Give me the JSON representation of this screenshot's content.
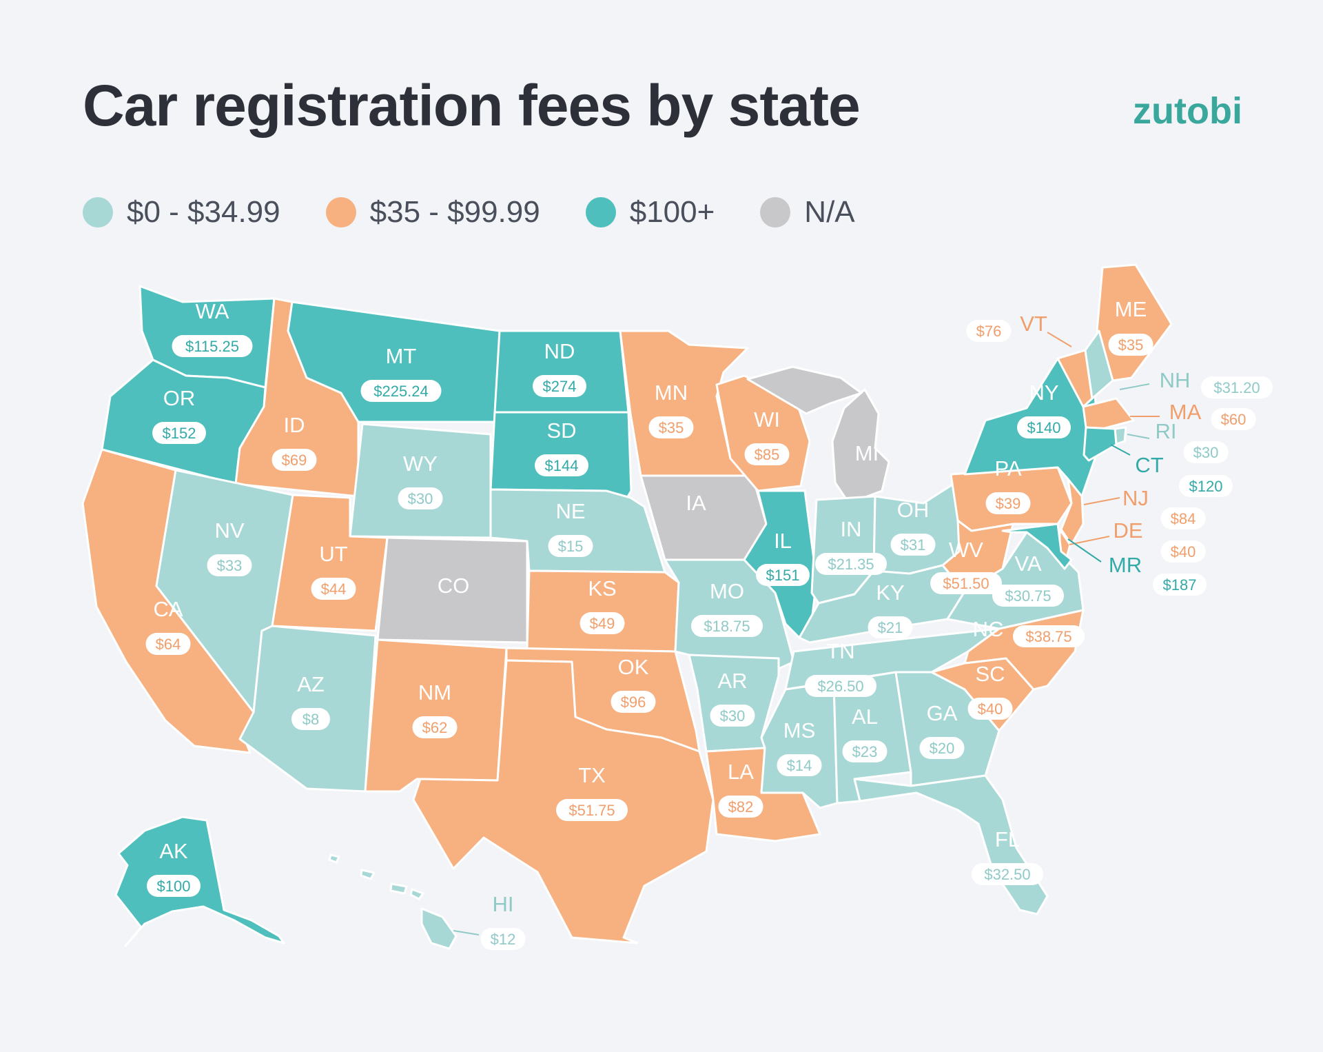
{
  "header": {
    "title": "Car registration fees by state",
    "brand": "zutobi"
  },
  "legend": [
    {
      "cat": "low",
      "label": "$0 - $34.99",
      "color": "#a8d8d6"
    },
    {
      "cat": "mid",
      "label": "$35 - $99.99",
      "color": "#f7b07f"
    },
    {
      "cat": "high",
      "label": "$100+",
      "color": "#4fbfbd"
    },
    {
      "cat": "na",
      "label": "N/A",
      "color": "#c8c8ca"
    }
  ],
  "text_colors": {
    "low": "#8fcac7",
    "mid": "#f09f6c",
    "high": "#32aaa7",
    "na": "#ffffff"
  },
  "states": [
    {
      "code": "WA",
      "fee": "$115.25",
      "cat": "high"
    },
    {
      "code": "OR",
      "fee": "$152",
      "cat": "high"
    },
    {
      "code": "CA",
      "fee": "$64",
      "cat": "mid"
    },
    {
      "code": "ID",
      "fee": "$69",
      "cat": "mid"
    },
    {
      "code": "NV",
      "fee": "$33",
      "cat": "low"
    },
    {
      "code": "MT",
      "fee": "$225.24",
      "cat": "high"
    },
    {
      "code": "WY",
      "fee": "$30",
      "cat": "low"
    },
    {
      "code": "UT",
      "fee": "$44",
      "cat": "mid"
    },
    {
      "code": "AZ",
      "fee": "$8",
      "cat": "low"
    },
    {
      "code": "CO",
      "fee": "",
      "cat": "na"
    },
    {
      "code": "NM",
      "fee": "$62",
      "cat": "mid"
    },
    {
      "code": "ND",
      "fee": "$274",
      "cat": "high"
    },
    {
      "code": "SD",
      "fee": "$144",
      "cat": "high"
    },
    {
      "code": "NE",
      "fee": "$15",
      "cat": "low"
    },
    {
      "code": "KS",
      "fee": "$49",
      "cat": "mid"
    },
    {
      "code": "OK",
      "fee": "$96",
      "cat": "mid"
    },
    {
      "code": "TX",
      "fee": "$51.75",
      "cat": "mid"
    },
    {
      "code": "MN",
      "fee": "$35",
      "cat": "mid"
    },
    {
      "code": "IA",
      "fee": "",
      "cat": "na"
    },
    {
      "code": "MO",
      "fee": "$18.75",
      "cat": "low"
    },
    {
      "code": "AR",
      "fee": "$30",
      "cat": "low"
    },
    {
      "code": "LA",
      "fee": "$82",
      "cat": "mid"
    },
    {
      "code": "WI",
      "fee": "$85",
      "cat": "mid"
    },
    {
      "code": "IL",
      "fee": "$151",
      "cat": "high"
    },
    {
      "code": "MI",
      "fee": "",
      "cat": "na"
    },
    {
      "code": "IN",
      "fee": "$21.35",
      "cat": "low"
    },
    {
      "code": "OH",
      "fee": "$31",
      "cat": "low"
    },
    {
      "code": "KY",
      "fee": "$21",
      "cat": "low"
    },
    {
      "code": "TN",
      "fee": "$26.50",
      "cat": "low"
    },
    {
      "code": "MS",
      "fee": "$14",
      "cat": "low"
    },
    {
      "code": "AL",
      "fee": "$23",
      "cat": "low"
    },
    {
      "code": "GA",
      "fee": "$20",
      "cat": "low"
    },
    {
      "code": "FL",
      "fee": "$32.50",
      "cat": "low"
    },
    {
      "code": "SC",
      "fee": "$40",
      "cat": "mid"
    },
    {
      "code": "NC",
      "fee": "$38.75",
      "cat": "mid"
    },
    {
      "code": "VA",
      "fee": "$30.75",
      "cat": "low"
    },
    {
      "code": "WV",
      "fee": "$51.50",
      "cat": "mid"
    },
    {
      "code": "PA",
      "fee": "$39",
      "cat": "mid"
    },
    {
      "code": "NY",
      "fee": "$140",
      "cat": "high"
    },
    {
      "code": "ME",
      "fee": "$35",
      "cat": "mid"
    },
    {
      "code": "VT",
      "fee": "$76",
      "cat": "mid"
    },
    {
      "code": "NH",
      "fee": "$31.20",
      "cat": "low"
    },
    {
      "code": "MA",
      "fee": "$60",
      "cat": "mid"
    },
    {
      "code": "RI",
      "fee": "$30",
      "cat": "low"
    },
    {
      "code": "CT",
      "fee": "$120",
      "cat": "high"
    },
    {
      "code": "NJ",
      "fee": "$84",
      "cat": "mid"
    },
    {
      "code": "DE",
      "fee": "$40",
      "cat": "mid"
    },
    {
      "code": "MR",
      "fee": "$187",
      "cat": "high"
    },
    {
      "code": "AK",
      "fee": "$100",
      "cat": "high"
    },
    {
      "code": "HI",
      "fee": "$12",
      "cat": "low"
    }
  ]
}
